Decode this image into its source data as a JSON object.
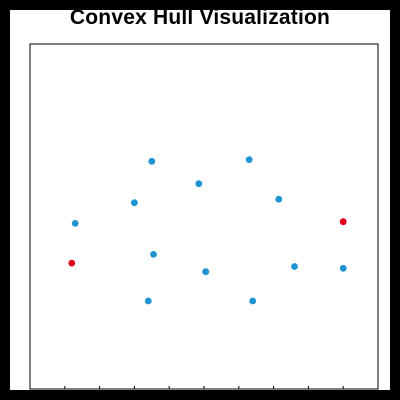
{
  "chart_data": {
    "type": "scatter",
    "title": "Convex Hull Visualization",
    "xlabel": "",
    "ylabel": "",
    "xlim": [
      0,
      10
    ],
    "ylim": [
      0,
      10
    ],
    "grid": false,
    "colors": {
      "point": "#1f94d2",
      "highlight": "#e0001b"
    },
    "points": [
      {
        "x": 3.5,
        "y": 6.6,
        "highlight": false
      },
      {
        "x": 6.3,
        "y": 6.65,
        "highlight": false
      },
      {
        "x": 4.85,
        "y": 5.95,
        "highlight": false
      },
      {
        "x": 3.0,
        "y": 5.4,
        "highlight": false
      },
      {
        "x": 7.15,
        "y": 5.5,
        "highlight": false
      },
      {
        "x": 1.3,
        "y": 4.8,
        "highlight": false
      },
      {
        "x": 9.0,
        "y": 4.85,
        "highlight": true
      },
      {
        "x": 1.2,
        "y": 3.65,
        "highlight": true
      },
      {
        "x": 3.55,
        "y": 3.9,
        "highlight": false
      },
      {
        "x": 5.05,
        "y": 3.4,
        "highlight": false
      },
      {
        "x": 7.6,
        "y": 3.55,
        "highlight": false
      },
      {
        "x": 9.0,
        "y": 3.5,
        "highlight": false
      },
      {
        "x": 3.4,
        "y": 2.55,
        "highlight": false
      },
      {
        "x": 6.4,
        "y": 2.55,
        "highlight": false
      }
    ]
  }
}
